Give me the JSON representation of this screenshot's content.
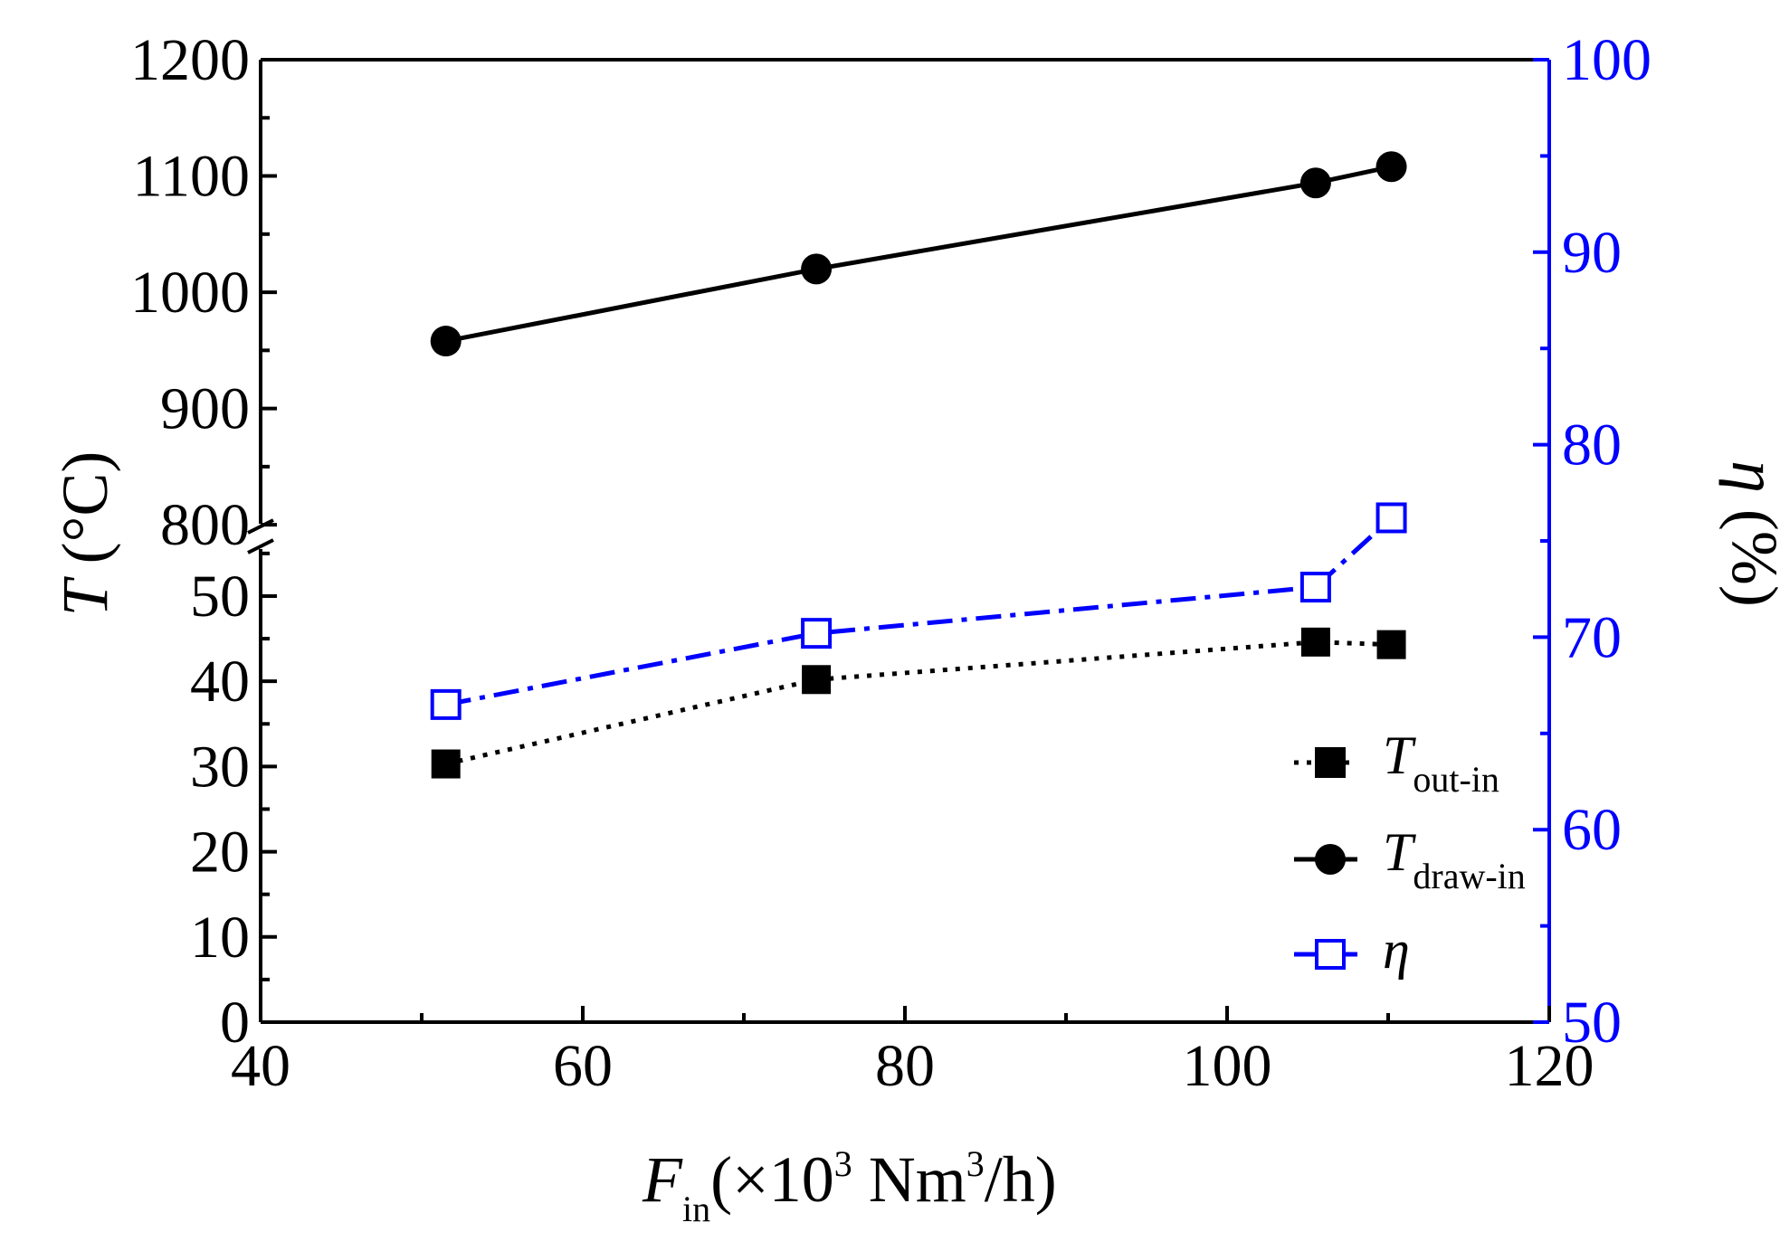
{
  "chart_data": {
    "type": "line",
    "x_axis": {
      "label_main": "F",
      "label_sub": "in",
      "label_unit_prefix": "(×10",
      "label_unit_sup1": "3",
      "label_unit_mid": " Nm",
      "label_unit_sup2": "3",
      "label_unit_suffix": "/h)",
      "range": [
        40,
        120
      ],
      "ticks": [
        40,
        60,
        80,
        100,
        120
      ]
    },
    "y_left_axis": {
      "label_main": "T",
      "label_unit": " (°C)",
      "broken": true,
      "lower_segment": {
        "range": [
          0,
          57
        ],
        "ticks": [
          0,
          10,
          20,
          30,
          40,
          50
        ]
      },
      "upper_segment": {
        "range": [
          790,
          1200
        ],
        "ticks": [
          800,
          900,
          1000,
          1100,
          1200
        ]
      }
    },
    "y_right_axis": {
      "label_main": "η",
      "label_unit": " (%)",
      "range": [
        50,
        100
      ],
      "ticks": [
        50,
        60,
        70,
        80,
        90,
        100
      ],
      "color": "#0000ff"
    },
    "series": [
      {
        "name": "T_out-in",
        "legend_main": "T",
        "legend_sub": "out-in",
        "axis": "left",
        "marker": "filled-square",
        "line": "dotted",
        "color": "#000000",
        "x": [
          51.5,
          74.5,
          105.5,
          110.2
        ],
        "y": [
          30.3,
          40.2,
          44.6,
          44.3
        ]
      },
      {
        "name": "T_draw-in",
        "legend_main": "T",
        "legend_sub": "draw-in",
        "axis": "left",
        "marker": "filled-circle",
        "line": "solid",
        "color": "#000000",
        "x": [
          51.5,
          74.5,
          105.5,
          110.2
        ],
        "y": [
          958,
          1020,
          1094,
          1108
        ]
      },
      {
        "name": "eta",
        "legend_main": "η",
        "legend_sub": "",
        "axis": "right",
        "marker": "open-square",
        "line": "dashdot",
        "color": "#0000ff",
        "x": [
          51.5,
          74.5,
          105.5,
          110.2
        ],
        "y": [
          66.5,
          70.2,
          72.6,
          76.2
        ]
      }
    ]
  }
}
